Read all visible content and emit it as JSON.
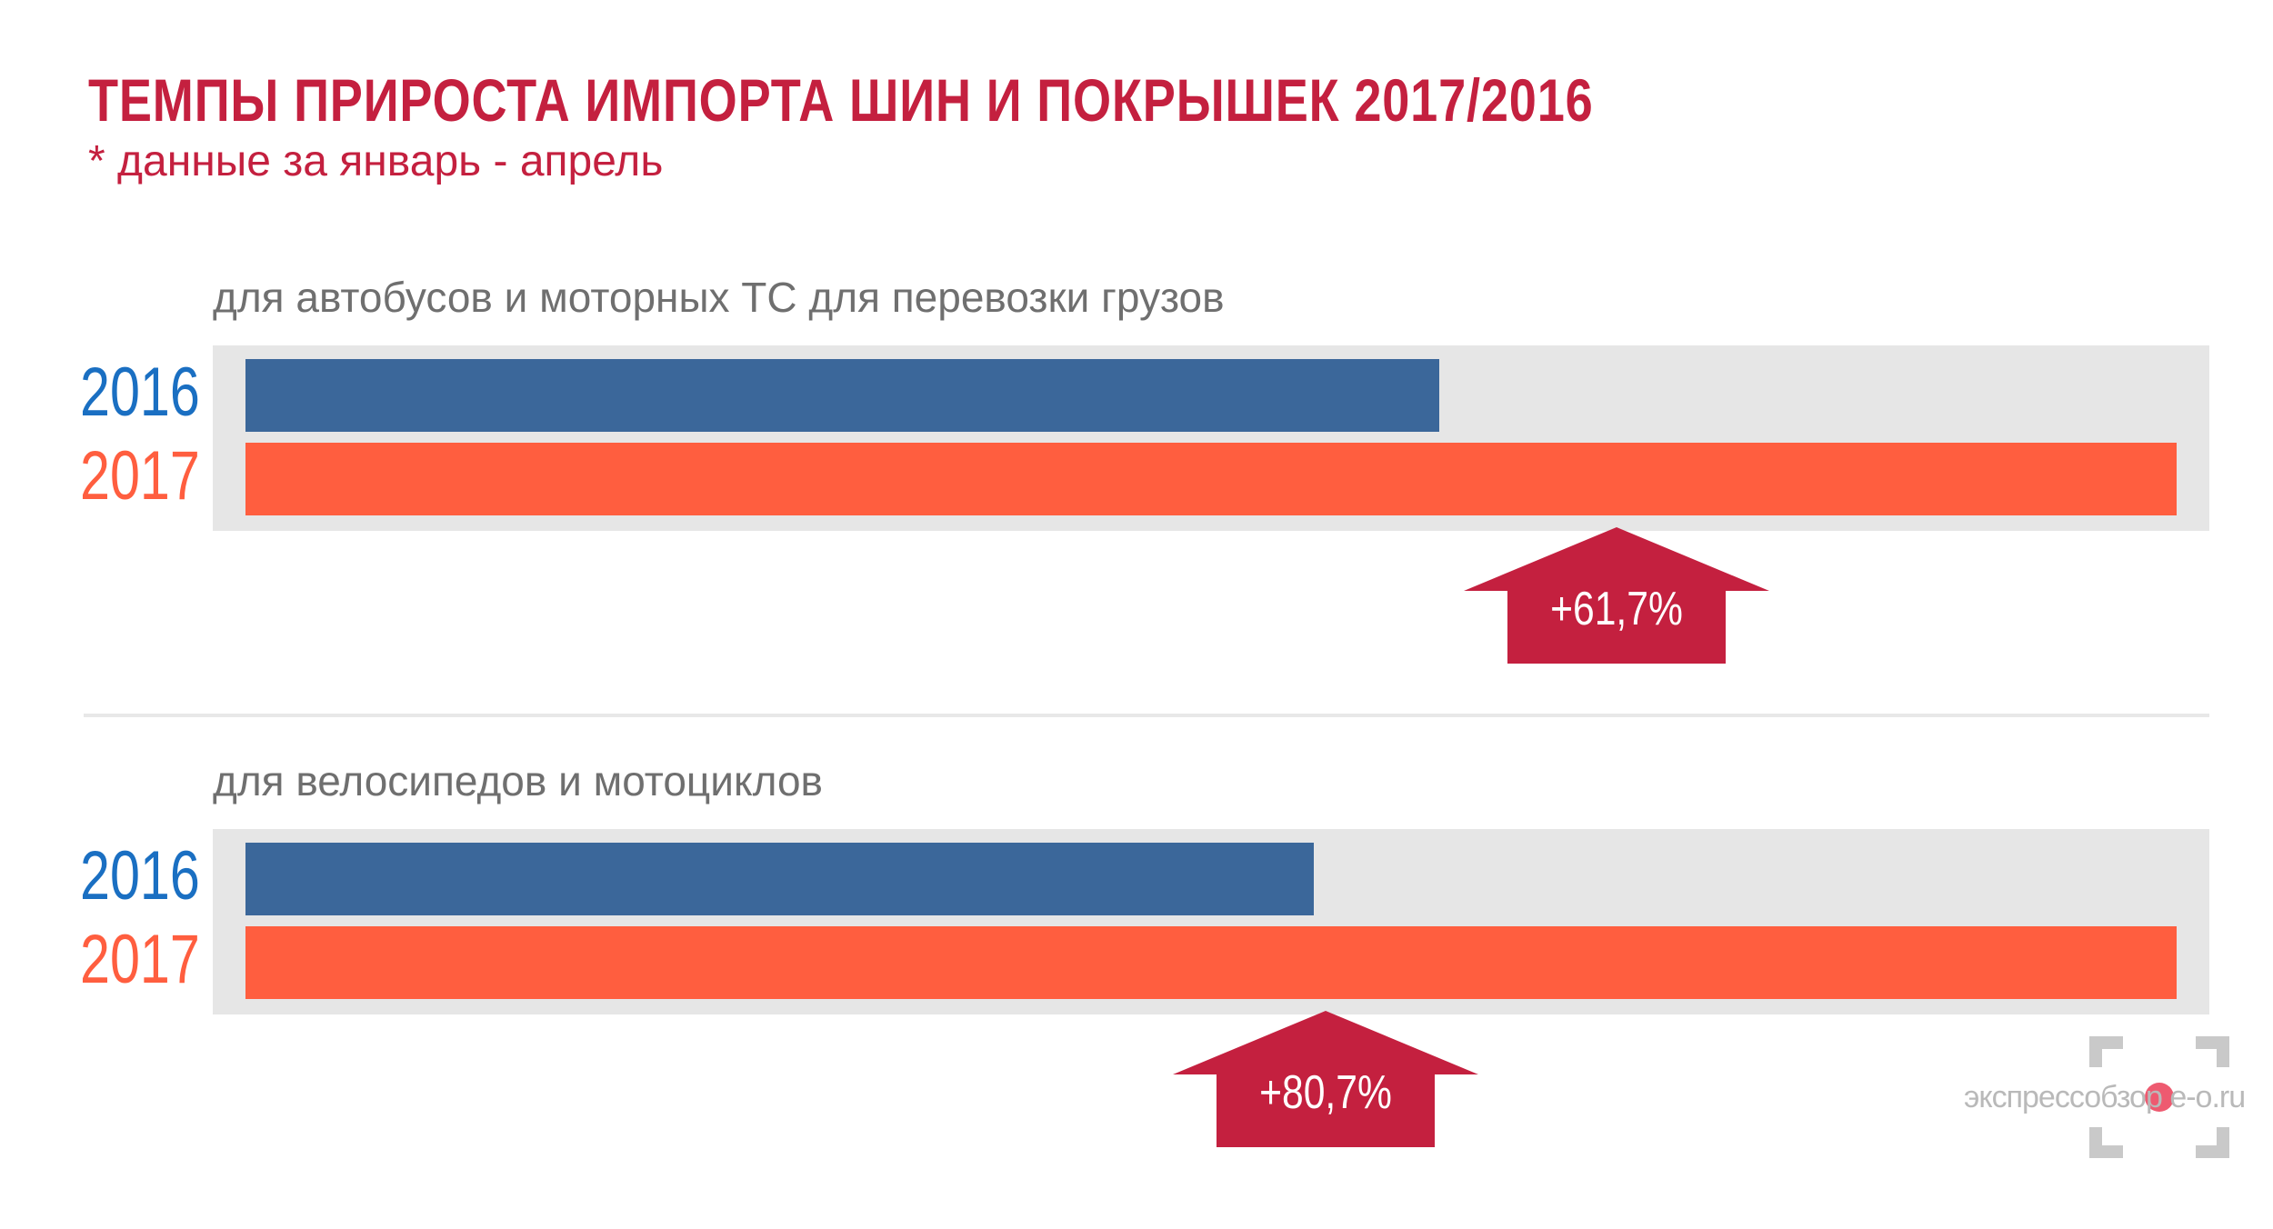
{
  "header": {
    "title": "ТЕМПЫ ПРИРОСТА ИМПОРТА ШИН И ПОКРЫШЕК 2017/2016",
    "subtitle": "* данные за январь - апрель"
  },
  "watermark": "экспрессобзор e-o.ru",
  "colors": {
    "title": "#c4203f",
    "bar_2016": "#3b679a",
    "bar_2017": "#ff5e3f",
    "year_2016": "#1a6fc2",
    "arrow": "#c4203f"
  },
  "chart_data": [
    {
      "type": "bar",
      "orientation": "horizontal",
      "title": "для автобусов и моторных ТС для перевозки грузов",
      "categories": [
        "2016",
        "2017"
      ],
      "values": [
        61.8,
        100
      ],
      "unit": "index (2017 = 100)",
      "change_label": "+61,7%"
    },
    {
      "type": "bar",
      "orientation": "horizontal",
      "title": "для велосипедов и мотоциклов",
      "categories": [
        "2016",
        "2017"
      ],
      "values": [
        55.3,
        100
      ],
      "unit": "index (2017 = 100)",
      "change_label": "+80,7%"
    }
  ]
}
